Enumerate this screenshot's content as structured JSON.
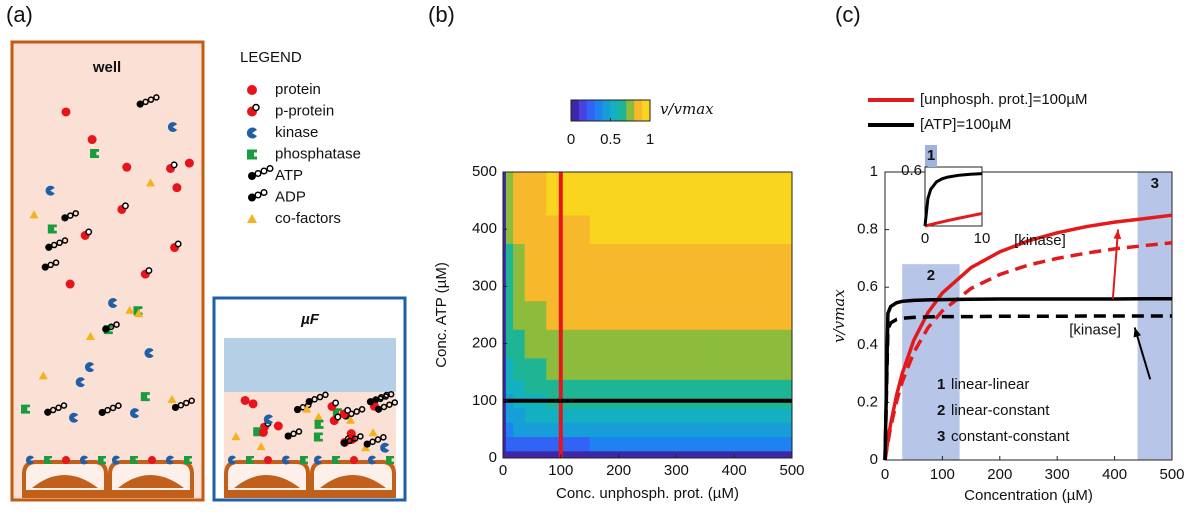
{
  "diagram": {
    "panel_label": "(a)",
    "well_label": "well",
    "microfluidic_label": "µF",
    "legend_title": "LEGEND",
    "legend": [
      "protein",
      "p-protein",
      "kinase",
      "phosphatase",
      "ATP",
      "ADP",
      "co-factors"
    ]
  },
  "chart_data": [
    {
      "type": "heatmap",
      "panel_label": "(b)",
      "xlabel": "Conc. unphosph. prot. (µM)",
      "ylabel": "Conc. ATP (µM)",
      "colorbar_label": "v/vmax",
      "clim": [
        0,
        1
      ],
      "cticks": [
        0,
        0.5,
        1
      ],
      "colormap": [
        "#3e26a8",
        "#4742e0",
        "#3163f5",
        "#1e83f0",
        "#179ed8",
        "#12b0c0",
        "#1eb594",
        "#8dbc3c",
        "#f7b82c",
        "#fad51e"
      ],
      "x": [
        0,
        10,
        25,
        50,
        100,
        200,
        300,
        400,
        500
      ],
      "y": [
        0,
        25,
        50,
        75,
        100,
        125,
        150,
        200,
        250,
        300,
        350,
        400,
        450,
        500
      ],
      "z": [
        [
          0,
          0.02,
          0.02,
          0.02,
          0.02,
          0.02,
          0.02,
          0.02,
          0.02
        ],
        [
          0,
          0.23,
          0.27,
          0.28,
          0.29,
          0.3,
          0.3,
          0.3,
          0.3
        ],
        [
          0,
          0.35,
          0.4,
          0.42,
          0.44,
          0.44,
          0.45,
          0.45,
          0.45
        ],
        [
          0,
          0.42,
          0.49,
          0.52,
          0.53,
          0.54,
          0.54,
          0.55,
          0.55
        ],
        [
          0,
          0.48,
          0.55,
          0.58,
          0.6,
          0.61,
          0.61,
          0.62,
          0.62
        ],
        [
          0,
          0.51,
          0.59,
          0.62,
          0.64,
          0.65,
          0.65,
          0.66,
          0.66
        ],
        [
          0,
          0.55,
          0.64,
          0.68,
          0.7,
          0.71,
          0.71,
          0.71,
          0.72
        ],
        [
          0,
          0.6,
          0.69,
          0.73,
          0.76,
          0.77,
          0.77,
          0.77,
          0.78
        ],
        [
          0,
          0.64,
          0.74,
          0.78,
          0.81,
          0.82,
          0.82,
          0.82,
          0.83
        ],
        [
          0,
          0.66,
          0.77,
          0.81,
          0.83,
          0.85,
          0.85,
          0.85,
          0.85
        ],
        [
          0,
          0.69,
          0.79,
          0.84,
          0.86,
          0.88,
          0.88,
          0.88,
          0.88
        ],
        [
          0,
          0.71,
          0.82,
          0.86,
          0.89,
          0.91,
          0.91,
          0.91,
          0.91
        ],
        [
          0,
          0.72,
          0.83,
          0.87,
          0.9,
          0.92,
          0.92,
          0.92,
          0.92
        ],
        [
          0,
          0.72,
          0.84,
          0.88,
          0.91,
          0.93,
          0.93,
          0.93,
          0.93
        ]
      ],
      "lines": [
        {
          "x": 100,
          "color": "#e8141c"
        },
        {
          "y": 100,
          "color": "#000000"
        }
      ],
      "xlim": [
        0,
        500
      ],
      "ylim": [
        0,
        500
      ],
      "xticks": [
        0,
        100,
        200,
        300,
        400,
        500
      ],
      "yticks": [
        0,
        100,
        200,
        300,
        400,
        500
      ]
    },
    {
      "type": "line",
      "panel_label": "(c)",
      "xlabel": "Concentration (µM)",
      "ylabel": "v/vmax",
      "x": [
        0,
        5,
        10,
        20,
        30,
        50,
        75,
        100,
        150,
        200,
        250,
        300,
        350,
        400,
        450,
        500
      ],
      "series": [
        {
          "name": "[unphosph. prot.]=100µM",
          "color": "#e31a1c",
          "dash": false,
          "values": [
            0,
            0.068,
            0.127,
            0.224,
            0.3,
            0.415,
            0.512,
            0.58,
            0.668,
            0.723,
            0.761,
            0.789,
            0.81,
            0.826,
            0.838,
            0.85
          ]
        },
        {
          "color": "#e31a1c",
          "dash": true,
          "values": [
            0,
            0.06,
            0.115,
            0.202,
            0.271,
            0.373,
            0.459,
            0.518,
            0.596,
            0.644,
            0.677,
            0.7,
            0.718,
            0.733,
            0.744,
            0.754
          ]
        },
        {
          "name": "[ATP]=100µM",
          "color": "#000000",
          "dash": false,
          "values": [
            0,
            0.509,
            0.533,
            0.546,
            0.551,
            0.554,
            0.556,
            0.557,
            0.558,
            0.559,
            0.559,
            0.559,
            0.559,
            0.559,
            0.56,
            0.56
          ]
        },
        {
          "color": "#000000",
          "dash": true,
          "values": [
            0,
            0.455,
            0.476,
            0.488,
            0.492,
            0.495,
            0.497,
            0.498,
            0.498,
            0.499,
            0.499,
            0.499,
            0.5,
            0.5,
            0.5,
            0.5
          ]
        }
      ],
      "regions": [
        {
          "label": "1",
          "description": "linear-linear"
        },
        {
          "label": "2",
          "description": "linear-constant",
          "x": [
            30,
            130
          ],
          "y": [
            0,
            0.68
          ]
        },
        {
          "label": "3",
          "description": "constant-constant",
          "x": [
            440,
            500
          ],
          "y": [
            0,
            1
          ]
        }
      ],
      "annotations": [
        {
          "text": "[kinase]",
          "color": "#e31a1c",
          "x": 270,
          "y": 0.76,
          "arrow": [
            [
              397,
              0.56
            ],
            [
              406,
              0.8
            ]
          ]
        },
        {
          "text": "[kinase]",
          "color": "#000000",
          "x": 366,
          "y": 0.45,
          "arrow": [
            [
              462,
              0.28
            ],
            [
              435,
              0.46
            ]
          ]
        }
      ],
      "inset": {
        "x": [
          0,
          0.5,
          1,
          2,
          3,
          4,
          6,
          8,
          10
        ],
        "xlim": [
          0,
          10
        ],
        "ylim": [
          0,
          0.6
        ],
        "xticks": [
          0,
          10
        ],
        "yticks": [
          0.6
        ],
        "series": [
          {
            "color": "#e31a1c",
            "values": [
              0,
              0.007,
              0.014,
              0.028,
              0.042,
              0.055,
              0.08,
              0.104,
              0.127
            ]
          },
          {
            "color": "#000000",
            "values": [
              0,
              0.28,
              0.373,
              0.448,
              0.48,
              0.497,
              0.517,
              0.527,
              0.533
            ]
          }
        ]
      },
      "xlim": [
        0,
        500
      ],
      "ylim": [
        0,
        1
      ],
      "xticks": [
        0,
        100,
        200,
        300,
        400,
        500
      ],
      "yticks": [
        0,
        0.2,
        0.4,
        0.6,
        0.8,
        1
      ]
    }
  ]
}
